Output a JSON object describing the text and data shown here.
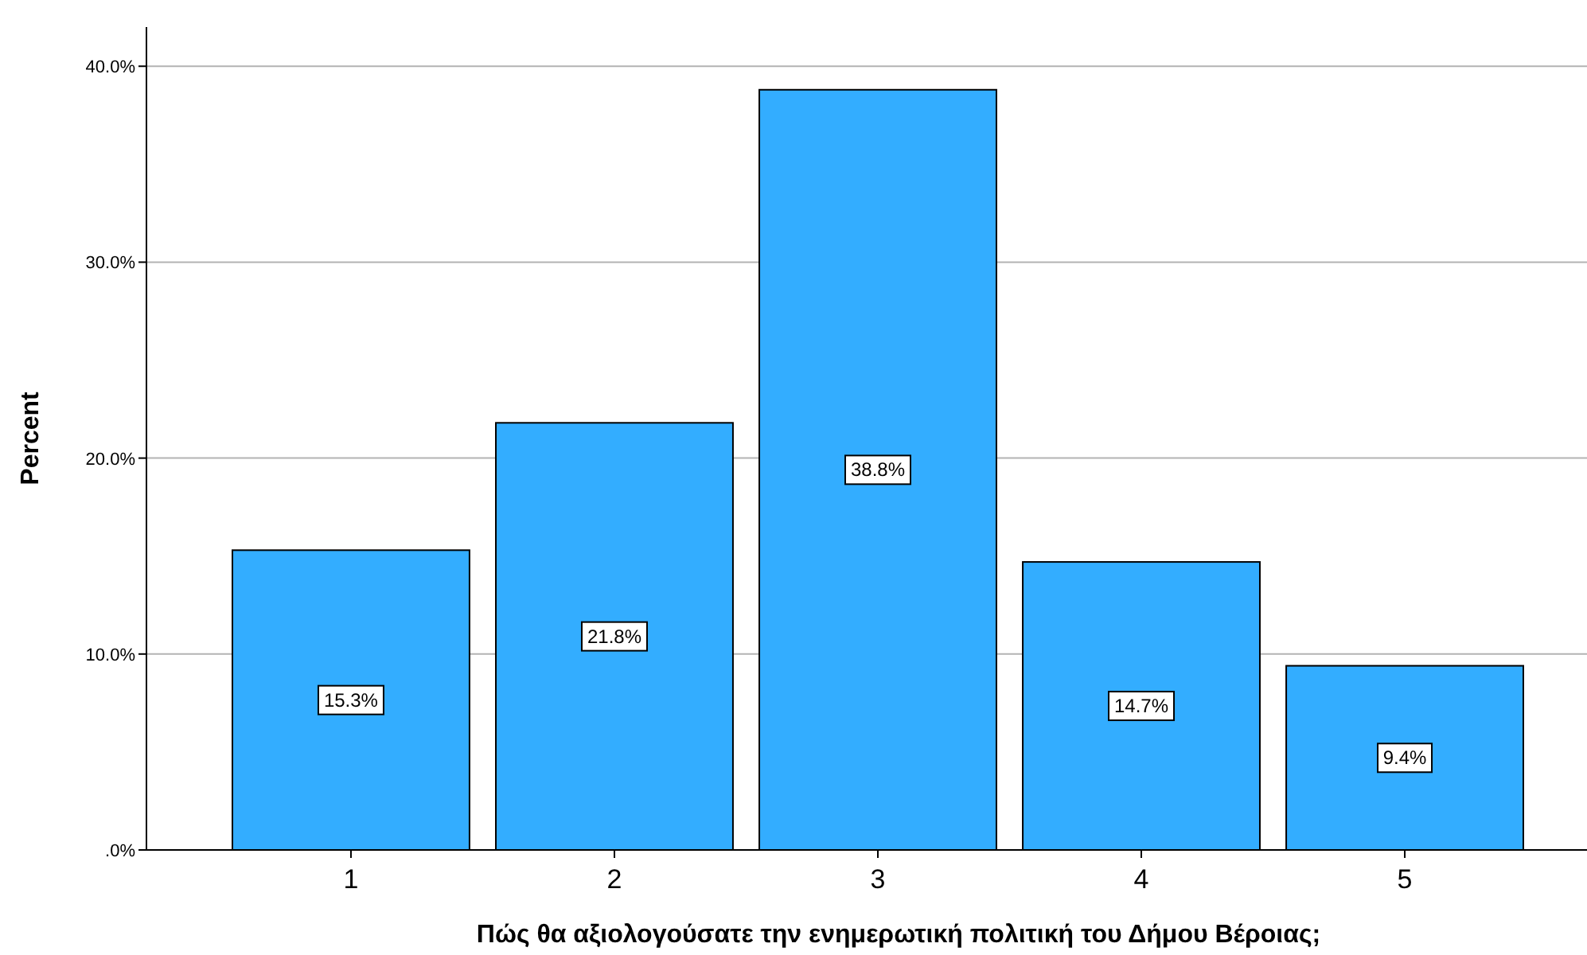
{
  "chart_data": {
    "type": "bar",
    "xlabel": "Πώς θα αξιολογούσατε την ενημερωτική πολιτική του Δήμου Βέροιας;",
    "ylabel": "Percent",
    "categories": [
      "1",
      "2",
      "3",
      "4",
      "5"
    ],
    "values": [
      15.3,
      21.8,
      38.8,
      14.7,
      9.4
    ],
    "value_labels": [
      "15.3%",
      "21.8%",
      "38.8%",
      "14.7%",
      "9.4%"
    ],
    "color": "#33adff",
    "ylim": [
      0,
      42
    ],
    "yticks": [
      {
        "value": 0,
        "label": ".0%"
      },
      {
        "value": 10,
        "label": "10.0%"
      },
      {
        "value": 20,
        "label": "20.0%"
      },
      {
        "value": 30,
        "label": "30.0%"
      },
      {
        "value": 40,
        "label": "40.0%"
      }
    ],
    "grid": "y"
  }
}
